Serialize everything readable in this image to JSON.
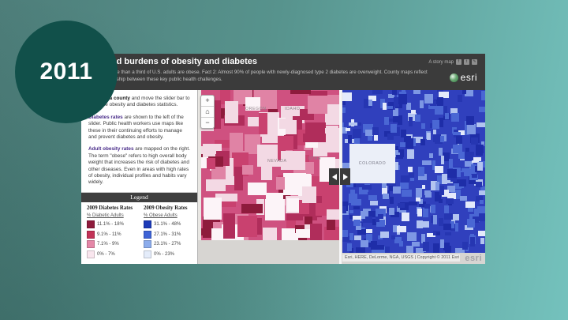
{
  "slide": {
    "year": "2011",
    "circle_color": "#11504a",
    "background_from": "#4e7e7a",
    "background_to": "#74c2bd"
  },
  "app": {
    "header": {
      "title": "Shared burdens of obesity and diabetes",
      "subtitle_line1": "Fact 1: More than a third of U.S. adults are obese. Fact 2: Almost 90% of people with newly-diagnosed type 2 diabetes are overweight. County maps reflect",
      "subtitle_line2": "the relationship between these key public health challenges.",
      "story_map_label": "A story map",
      "facebook_glyph": "f",
      "twitter_glyph": "t",
      "edit_glyph": "✎",
      "brand": "esri"
    },
    "panel": {
      "p1_bold": "Click on a county",
      "p1_rest": " and move the slider bar to compare obesity and diabetes statistics.",
      "p2_bold": "Diabetes rates",
      "p2_rest": " are shown to the left of the slider.  Public health workers use maps like these in their continuing efforts to manage and prevent diabetes and obesity.",
      "p3_bold": "Adult obesity rates",
      "p3_rest": " are mapped on the right.  The term \"obese\" refers to high overall body weight that increases the risk of diabetes and other diseases.  Even in areas with high rates of obesity, individual profiles and habits vary widely."
    },
    "legend": {
      "title": "Legend",
      "columns": [
        {
          "heading": "2009 Diabetes Rates",
          "subheading": "% Diabetic Adults",
          "items": [
            {
              "color": "#8e1b3c",
              "label": "11.1% - 18%"
            },
            {
              "color": "#c23357",
              "label": "9.1% - 11%"
            },
            {
              "color": "#e487a7",
              "label": "7.1% - 9%"
            },
            {
              "color": "#f9e6ee",
              "label": "0% - 7%"
            }
          ]
        },
        {
          "heading": "2009 Obesity Rates",
          "subheading": "% Obese Adults",
          "items": [
            {
              "color": "#1c3ab8",
              "label": "31.1% - 48%"
            },
            {
              "color": "#3e63d6",
              "label": "27.1% - 31%"
            },
            {
              "color": "#8cacec",
              "label": "23.1% - 27%"
            },
            {
              "color": "#e4ecfa",
              "label": "0% - 23%"
            }
          ]
        }
      ]
    },
    "map": {
      "controls": {
        "zoom_in": "+",
        "home": "⌂",
        "zoom_out": "−"
      },
      "state_labels_left": [
        "OREGON",
        "IDAHO",
        "NEVADA",
        "UTAH"
      ],
      "state_label_right": "COLORADO",
      "attribution": "Esri, HERE, DeLorme, NGA, USGS | Copyright © 2011 Esri",
      "watermark": "esri",
      "mosaics": {
        "diabetes": {
          "seed": 7,
          "base": "#cf5180",
          "count": 130,
          "min": 9,
          "max": 32,
          "colors": [
            {
              "c": "#b02d5b",
              "w": 0.24
            },
            {
              "c": "#8e1b3c",
              "w": 0.09
            },
            {
              "c": "#e083a5",
              "w": 0.15
            },
            {
              "c": "#f3d9e4",
              "w": 0.22
            },
            {
              "c": "#fcf4f8",
              "w": 0.13
            },
            {
              "c": "#c9416f",
              "w": 0.17
            }
          ]
        },
        "obesity": {
          "seed": 21,
          "base": "#3040bd",
          "count": 340,
          "min": 4,
          "max": 13,
          "colors": [
            {
              "c": "#1e2da8",
              "w": 0.2
            },
            {
              "c": "#4a67d4",
              "w": 0.25
            },
            {
              "c": "#7d97e4",
              "w": 0.15
            },
            {
              "c": "#b3c4f0",
              "w": 0.12
            },
            {
              "c": "#e4eafb",
              "w": 0.1
            },
            {
              "c": "#2636b2",
              "w": 0.18
            }
          ]
        }
      }
    }
  }
}
